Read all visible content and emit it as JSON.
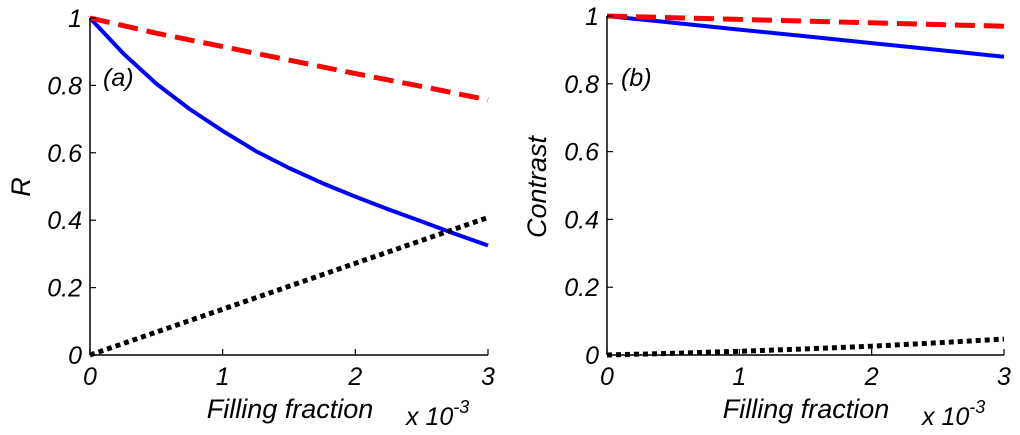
{
  "chart_data": [
    {
      "type": "line",
      "panel_label": "(a)",
      "xlabel": "Filling fraction",
      "ylabel": "R",
      "x_multiplier_label": "x 10",
      "x_multiplier_exponent": "-3",
      "xlim": [
        0,
        3
      ],
      "ylim": [
        0,
        1
      ],
      "xticks": [
        "0",
        "1",
        "2",
        "3"
      ],
      "yticks": [
        "0",
        "0.2",
        "0.4",
        "0.6",
        "0.8",
        "1"
      ],
      "series": [
        {
          "name": "solid blue",
          "style": "solid",
          "color": "#0000ff",
          "x": [
            0,
            0.25,
            0.5,
            0.75,
            1.0,
            1.25,
            1.5,
            1.75,
            2.0,
            2.25,
            2.5,
            2.75,
            3.0
          ],
          "y": [
            1.0,
            0.895,
            0.805,
            0.73,
            0.665,
            0.605,
            0.555,
            0.51,
            0.47,
            0.432,
            0.396,
            0.36,
            0.325
          ]
        },
        {
          "name": "dashed red",
          "style": "dashed",
          "color": "#ff0000",
          "x": [
            0,
            0.5,
            1.0,
            1.5,
            2.0,
            2.5,
            3.0
          ],
          "y": [
            1.0,
            0.955,
            0.915,
            0.875,
            0.835,
            0.797,
            0.757
          ]
        },
        {
          "name": "dotted black",
          "style": "dotted",
          "color": "#000000",
          "x": [
            0,
            0.5,
            1.0,
            1.5,
            2.0,
            2.5,
            3.0
          ],
          "y": [
            0.0,
            0.068,
            0.136,
            0.204,
            0.272,
            0.34,
            0.408
          ]
        }
      ]
    },
    {
      "type": "line",
      "panel_label": "(b)",
      "xlabel": "Filling fraction",
      "ylabel": "Contrast",
      "x_multiplier_label": "x 10",
      "x_multiplier_exponent": "-3",
      "xlim": [
        0,
        3
      ],
      "ylim": [
        0,
        1
      ],
      "xticks": [
        "0",
        "1",
        "2",
        "3"
      ],
      "yticks": [
        "0",
        "0.2",
        "0.4",
        "0.6",
        "0.8",
        "1"
      ],
      "series": [
        {
          "name": "solid blue",
          "style": "solid",
          "color": "#0000ff",
          "x": [
            0,
            0.5,
            1.0,
            1.5,
            2.0,
            2.5,
            3.0
          ],
          "y": [
            1.0,
            0.98,
            0.96,
            0.94,
            0.92,
            0.9,
            0.88
          ]
        },
        {
          "name": "dashed red",
          "style": "dashed",
          "color": "#ff0000",
          "x": [
            0,
            0.5,
            1.0,
            1.5,
            2.0,
            2.5,
            3.0
          ],
          "y": [
            1.0,
            0.995,
            0.99,
            0.985,
            0.98,
            0.975,
            0.97
          ]
        },
        {
          "name": "dotted black",
          "style": "dotted",
          "color": "#000000",
          "x": [
            0,
            0.5,
            1.0,
            1.5,
            2.0,
            2.5,
            3.0
          ],
          "y": [
            0.0,
            0.005,
            0.011,
            0.018,
            0.026,
            0.036,
            0.047
          ]
        }
      ]
    }
  ]
}
